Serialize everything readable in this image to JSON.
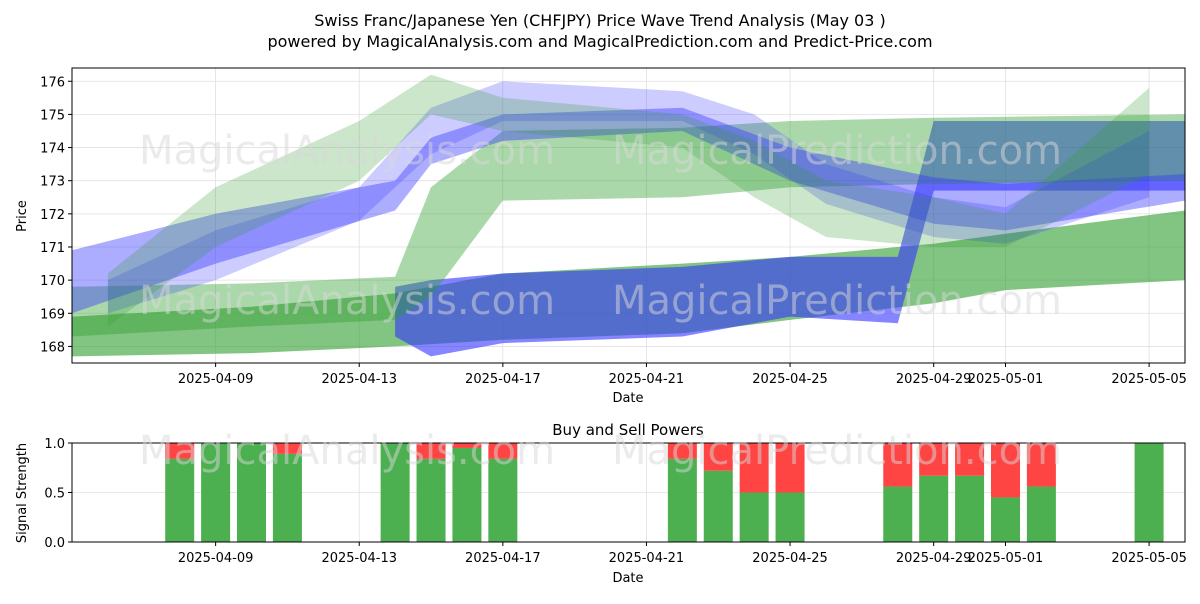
{
  "header": {
    "title_line1": "Swiss Franc/Japanese Yen (CHFJPY) Price Wave Trend Analysis (May 03 )",
    "title_line2": "powered by MagicalAnalysis.com and MagicalPrediction.com and Predict-Price.com"
  },
  "watermarks": [
    "MagicalAnalysis.com",
    "MagicalPrediction.com"
  ],
  "colors": {
    "green": "#4caf50",
    "green_band": "#2e9d2e",
    "blue_band": "#3333ff",
    "red": "#ff4444",
    "grid": "#e0e0e0"
  },
  "chart_data": [
    {
      "type": "area",
      "title": "",
      "xlabel": "Date",
      "ylabel": "Price",
      "ylim": [
        167.5,
        176.4
      ],
      "yticks": [
        168,
        169,
        170,
        171,
        172,
        173,
        174,
        175,
        176
      ],
      "xlim": [
        "2025-04-05",
        "2025-05-06"
      ],
      "xticks": [
        "2025-04-09",
        "2025-04-13",
        "2025-04-17",
        "2025-04-21",
        "2025-04-25",
        "2025-04-29",
        "2025-05-01",
        "2025-05-05"
      ],
      "grid": true,
      "series": [
        {
          "color": "green",
          "opacity": 0.6,
          "x": [
            "2025-04-05",
            "2025-04-10",
            "2025-04-14",
            "2025-04-17",
            "2025-04-22",
            "2025-04-25",
            "2025-04-29",
            "2025-05-01",
            "2025-05-06"
          ],
          "upper": [
            168.9,
            169.2,
            169.6,
            170.2,
            170.5,
            170.7,
            171.1,
            171.4,
            172.1
          ],
          "lower": [
            167.7,
            167.8,
            168.0,
            168.2,
            168.4,
            168.8,
            169.3,
            169.7,
            170.0
          ]
        },
        {
          "color": "blue",
          "opacity": 0.6,
          "x": [
            "2025-04-14",
            "2025-04-15",
            "2025-04-17",
            "2025-04-22",
            "2025-04-25",
            "2025-04-28",
            "2025-04-29",
            "2025-05-01",
            "2025-05-06"
          ],
          "upper": [
            169.8,
            170.0,
            170.2,
            170.4,
            170.7,
            170.7,
            174.8,
            174.8,
            174.8
          ],
          "lower": [
            168.3,
            167.7,
            168.1,
            168.3,
            168.9,
            168.7,
            172.7,
            172.7,
            172.7
          ]
        },
        {
          "color": "green",
          "opacity": 0.4,
          "x": [
            "2025-04-05",
            "2025-04-10",
            "2025-04-14",
            "2025-04-15",
            "2025-04-17",
            "2025-04-22",
            "2025-04-25",
            "2025-04-29",
            "2025-05-06"
          ],
          "upper": [
            169.8,
            169.9,
            170.1,
            172.8,
            174.5,
            174.6,
            174.8,
            174.9,
            175.0
          ],
          "lower": [
            168.3,
            168.6,
            168.8,
            169.5,
            172.4,
            172.5,
            172.8,
            172.9,
            173.0
          ]
        },
        {
          "color": "blue",
          "opacity": 0.4,
          "x": [
            "2025-04-05",
            "2025-04-09",
            "2025-04-14",
            "2025-04-15",
            "2025-04-17",
            "2025-04-22",
            "2025-04-25",
            "2025-04-29",
            "2025-05-01",
            "2025-05-06"
          ],
          "upper": [
            170.9,
            172.0,
            173.0,
            174.3,
            175.0,
            175.2,
            174.0,
            173.1,
            172.9,
            173.2
          ],
          "lower": [
            169.0,
            170.5,
            172.1,
            173.5,
            174.2,
            174.5,
            173.0,
            171.7,
            171.5,
            172.4
          ]
        },
        {
          "color": "blue",
          "opacity": 0.25,
          "x": [
            "2025-04-06",
            "2025-04-09",
            "2025-04-13",
            "2025-04-15",
            "2025-04-17",
            "2025-04-22",
            "2025-04-24",
            "2025-04-26",
            "2025-04-29",
            "2025-05-01",
            "2025-05-05"
          ],
          "upper": [
            170.0,
            171.5,
            172.8,
            175.2,
            176.0,
            175.7,
            175.0,
            173.5,
            172.5,
            172.2,
            174.5
          ],
          "lower": [
            169.0,
            170.0,
            171.8,
            173.8,
            174.8,
            174.8,
            173.8,
            172.3,
            171.3,
            171.1,
            172.5
          ]
        },
        {
          "color": "green",
          "opacity": 0.25,
          "x": [
            "2025-04-06",
            "2025-04-09",
            "2025-04-13",
            "2025-04-15",
            "2025-04-17",
            "2025-04-22",
            "2025-04-24",
            "2025-04-26",
            "2025-04-29",
            "2025-05-01",
            "2025-05-05"
          ],
          "upper": [
            170.2,
            172.8,
            174.8,
            176.2,
            175.5,
            175.0,
            174.2,
            173.0,
            172.5,
            172.0,
            175.8
          ],
          "lower": [
            168.6,
            171.0,
            173.0,
            175.0,
            174.5,
            174.0,
            172.5,
            171.3,
            171.0,
            171.0,
            173.2
          ]
        }
      ]
    },
    {
      "type": "bar",
      "title": "Buy and Sell Powers",
      "xlabel": "Date",
      "ylabel": "Signal Strength",
      "ylim": [
        0,
        1.0
      ],
      "yticks": [
        "0.0",
        "0.5",
        "1.0"
      ],
      "xlim": [
        "2025-04-05",
        "2025-05-06"
      ],
      "xticks": [
        "2025-04-09",
        "2025-04-13",
        "2025-04-17",
        "2025-04-21",
        "2025-04-25",
        "2025-04-29",
        "2025-05-01",
        "2025-05-05"
      ],
      "grid": true,
      "bars": [
        {
          "date": "2025-04-08",
          "buy": 0.84
        },
        {
          "date": "2025-04-09",
          "buy": 1.0
        },
        {
          "date": "2025-04-10",
          "buy": 1.0
        },
        {
          "date": "2025-04-11",
          "buy": 0.89
        },
        {
          "date": "2025-04-14",
          "buy": 1.0
        },
        {
          "date": "2025-04-15",
          "buy": 0.84
        },
        {
          "date": "2025-04-16",
          "buy": 0.95
        },
        {
          "date": "2025-04-17",
          "buy": 0.84
        },
        {
          "date": "2025-04-22",
          "buy": 0.84
        },
        {
          "date": "2025-04-23",
          "buy": 0.72
        },
        {
          "date": "2025-04-24",
          "buy": 0.5
        },
        {
          "date": "2025-04-25",
          "buy": 0.5
        },
        {
          "date": "2025-04-28",
          "buy": 0.56
        },
        {
          "date": "2025-04-29",
          "buy": 0.67
        },
        {
          "date": "2025-04-30",
          "buy": 0.67
        },
        {
          "date": "2025-05-01",
          "buy": 0.45
        },
        {
          "date": "2025-05-02",
          "buy": 0.56
        },
        {
          "date": "2025-05-05",
          "buy": 1.0
        }
      ]
    }
  ]
}
